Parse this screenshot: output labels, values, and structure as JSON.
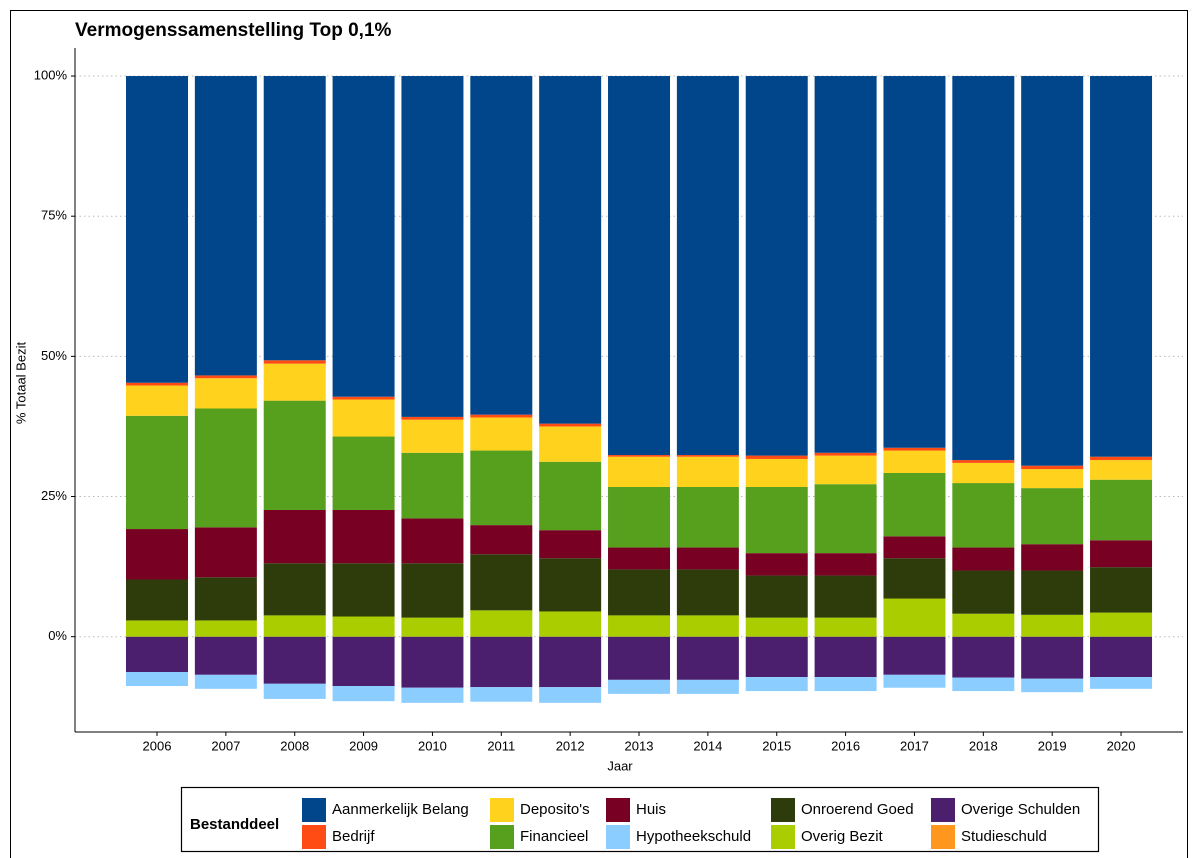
{
  "chart_data": {
    "type": "stacked-bar",
    "title": "Vermogenssamenstelling Top 0,1%",
    "x_label": "Jaar",
    "y_label": "% Totaal Bezit",
    "legend_title": "Bestanddeel",
    "categories": [
      "2006",
      "2007",
      "2008",
      "2009",
      "2010",
      "2011",
      "2012",
      "2013",
      "2014",
      "2015",
      "2016",
      "2017",
      "2018",
      "2019",
      "2020"
    ],
    "ylim": [
      -17,
      105
    ],
    "yticks": [
      {
        "value": 0,
        "label": "0%"
      },
      {
        "value": 25,
        "label": "25%"
      },
      {
        "value": 50,
        "label": "50%"
      },
      {
        "value": 75,
        "label": "75%"
      },
      {
        "value": 100,
        "label": "100%"
      }
    ],
    "grid": true,
    "legend": "bottom",
    "series": [
      {
        "name": "Aanmerkelijk Belang",
        "color": "#01468b",
        "values": [
          54.7,
          53.4,
          50.7,
          57.2,
          60.8,
          60.4,
          62.0,
          67.6,
          67.6,
          67.7,
          67.2,
          66.3,
          68.5,
          69.5,
          67.9
        ]
      },
      {
        "name": "Bedrijf",
        "color": "#ff4b14",
        "values": [
          0.5,
          0.5,
          0.6,
          0.5,
          0.5,
          0.5,
          0.5,
          0.3,
          0.3,
          0.6,
          0.5,
          0.5,
          0.5,
          0.6,
          0.6
        ]
      },
      {
        "name": "Deposito's",
        "color": "#ffd21e",
        "values": [
          5.4,
          5.4,
          6.6,
          6.6,
          5.9,
          5.9,
          6.3,
          5.4,
          5.4,
          5.0,
          5.1,
          4.0,
          3.6,
          3.4,
          3.5
        ]
      },
      {
        "name": "Financieel",
        "color": "#56a01e",
        "values": [
          20.2,
          21.2,
          19.5,
          13.1,
          11.7,
          13.3,
          12.2,
          10.8,
          10.8,
          11.8,
          12.3,
          11.3,
          11.5,
          10.0,
          10.8
        ]
      },
      {
        "name": "Huis",
        "color": "#780023",
        "values": [
          9.0,
          8.9,
          9.5,
          9.5,
          8.0,
          5.2,
          5.0,
          3.9,
          3.9,
          4.0,
          4.0,
          3.9,
          4.1,
          4.7,
          4.8
        ]
      },
      {
        "name": "Hypotheekschuld",
        "color": "#8ccdff",
        "values": [
          -2.5,
          -2.5,
          -2.7,
          -2.7,
          -2.7,
          -2.6,
          -2.8,
          -2.5,
          -2.5,
          -2.5,
          -2.5,
          -2.3,
          -2.4,
          -2.4,
          -2.1
        ]
      },
      {
        "name": "Onroerend Goed",
        "color": "#2d3c0a",
        "values": [
          7.3,
          7.7,
          9.3,
          9.5,
          9.7,
          10.0,
          9.5,
          8.2,
          8.2,
          7.5,
          7.5,
          7.2,
          7.7,
          7.9,
          8.1
        ]
      },
      {
        "name": "Overig Bezit",
        "color": "#aacd00",
        "values": [
          2.9,
          2.9,
          3.8,
          3.6,
          3.4,
          4.7,
          4.5,
          3.8,
          3.8,
          3.4,
          3.4,
          6.8,
          4.1,
          3.9,
          4.3
        ]
      },
      {
        "name": "Overige Schulden",
        "color": "#4b1e6e",
        "values": [
          -6.3,
          -6.8,
          -8.4,
          -8.8,
          -9.1,
          -9.0,
          -9.0,
          -7.7,
          -7.7,
          -7.2,
          -7.2,
          -6.8,
          -7.3,
          -7.5,
          -7.2
        ]
      },
      {
        "name": "Studieschuld",
        "color": "#ff961e",
        "values": [
          0,
          0,
          0,
          0,
          0,
          0,
          0,
          0,
          0,
          0,
          0,
          0,
          0,
          0,
          0
        ]
      }
    ]
  }
}
